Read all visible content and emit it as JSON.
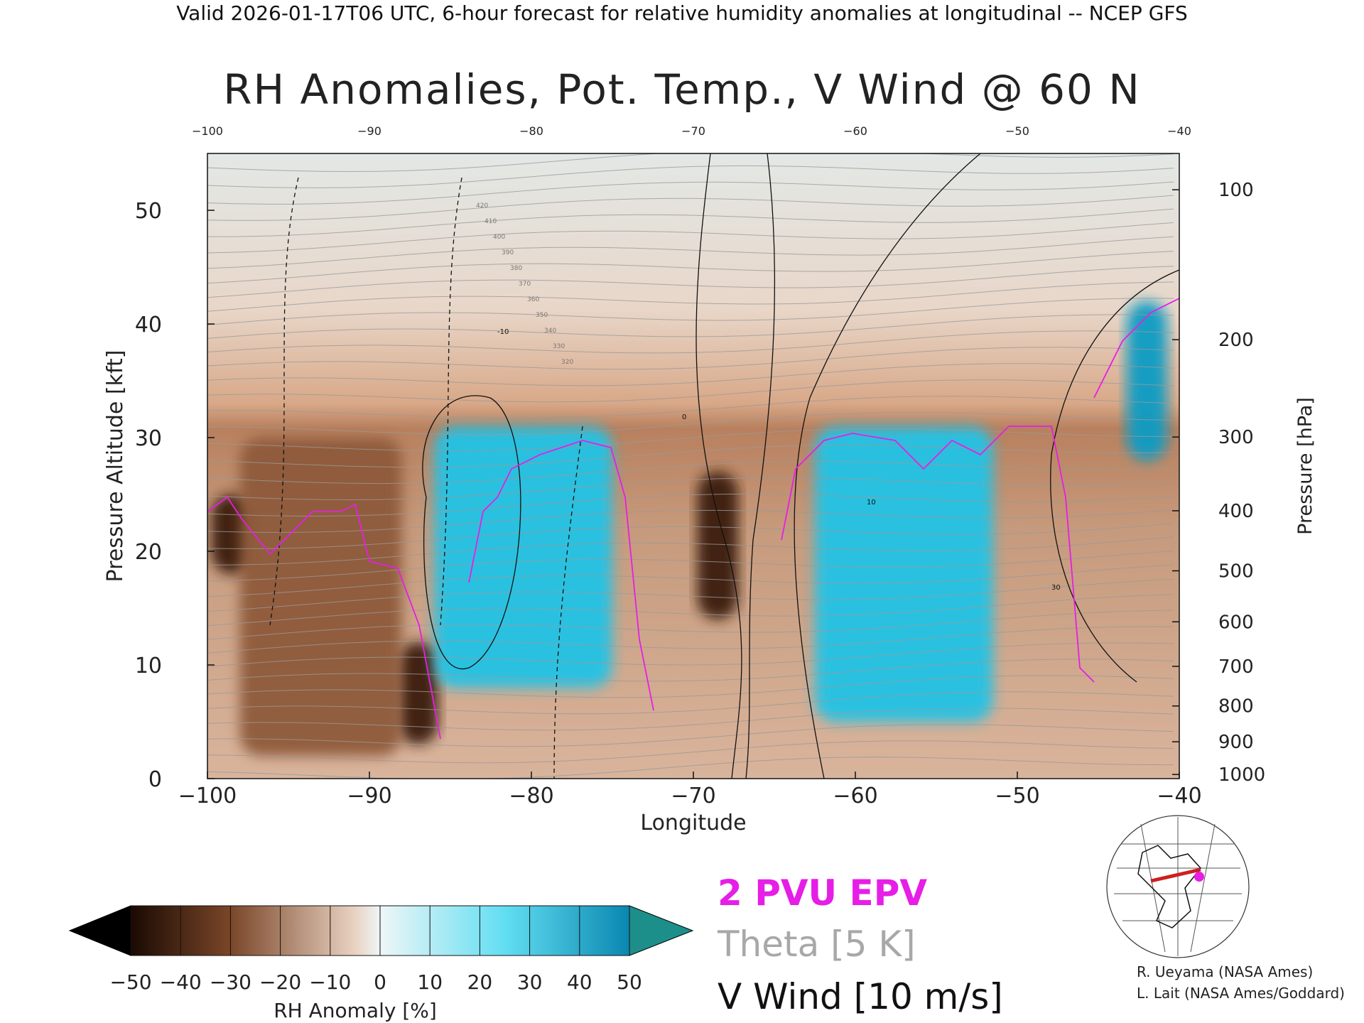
{
  "header": {
    "valid_line": "Valid 2026-01-17T06 UTC, 6-hour forecast for relative humidity anomalies at longitudinal -- NCEP GFS"
  },
  "chart_data": {
    "type": "heatmap",
    "title": "RH Anomalies, Pot. Temp., V Wind @ 60 N",
    "xlabel": "Longitude",
    "ylabel": "Pressure Altitude [kft]",
    "ylabel_right": "Pressure [hPa]",
    "xlim": [
      -100,
      -40
    ],
    "ylim": [
      0,
      55
    ],
    "x_ticks": [
      -100,
      -90,
      -80,
      -70,
      -60,
      -50,
      -40
    ],
    "y_ticks": [
      0,
      10,
      20,
      30,
      40,
      50
    ],
    "pressure_ticks": [
      100,
      200,
      300,
      400,
      500,
      600,
      700,
      800,
      900,
      1000
    ],
    "colorbar": {
      "label": "RH Anomaly [%]",
      "ticks": [
        -50,
        -40,
        -30,
        -20,
        -10,
        0,
        10,
        20,
        30,
        40,
        50
      ],
      "colors": [
        "#000000",
        "#3b1c0c",
        "#6a3a1e",
        "#8e5a3a",
        "#b58466",
        "#d9b29a",
        "#eef1f2",
        "#c6f5fb",
        "#8eeaf7",
        "#52dcf1",
        "#21c3e6",
        "#0b9cc4",
        "#1d8f8a"
      ]
    },
    "rh_anomaly_features": [
      {
        "lon": -98.5,
        "kft_min": 18,
        "kft_max": 25,
        "anomaly": -50
      },
      {
        "lon": -87.0,
        "kft_min": 3,
        "kft_max": 12,
        "anomaly": -50
      },
      {
        "lon": -68.5,
        "kft_min": 14,
        "kft_max": 27,
        "anomaly": -50
      },
      {
        "lon": -93.0,
        "kft_min": 2,
        "kft_max": 30,
        "anomaly": -30
      },
      {
        "lon": -80.5,
        "kft_min": 8,
        "kft_max": 31,
        "anomaly": 40
      },
      {
        "lon": -57.0,
        "kft_min": 5,
        "kft_max": 31,
        "anomaly": 35
      },
      {
        "lon": -42.0,
        "kft_min": 28,
        "kft_max": 42,
        "anomaly": 50
      }
    ],
    "theta_labels": [
      420,
      410,
      400,
      390,
      380,
      370,
      360,
      350,
      340,
      330,
      320
    ],
    "vwind_labels": [
      "-10",
      "0",
      "10",
      "30"
    ],
    "legend": [
      "2 PVU EPV",
      "Theta [5 K]",
      "V Wind [10 m/s]"
    ]
  },
  "legend": {
    "pv": "2 PVU EPV",
    "theta": "Theta [5 K]",
    "vwind": "V Wind [10 m/s]",
    "colors": {
      "pv": "#e61ee6",
      "theta": "#a8a8a8",
      "vwind": "#111111"
    }
  },
  "credits": {
    "line1": "R. Ueyama (NASA Ames)",
    "line2": "L. Lait (NASA Ames/Goddard)"
  }
}
